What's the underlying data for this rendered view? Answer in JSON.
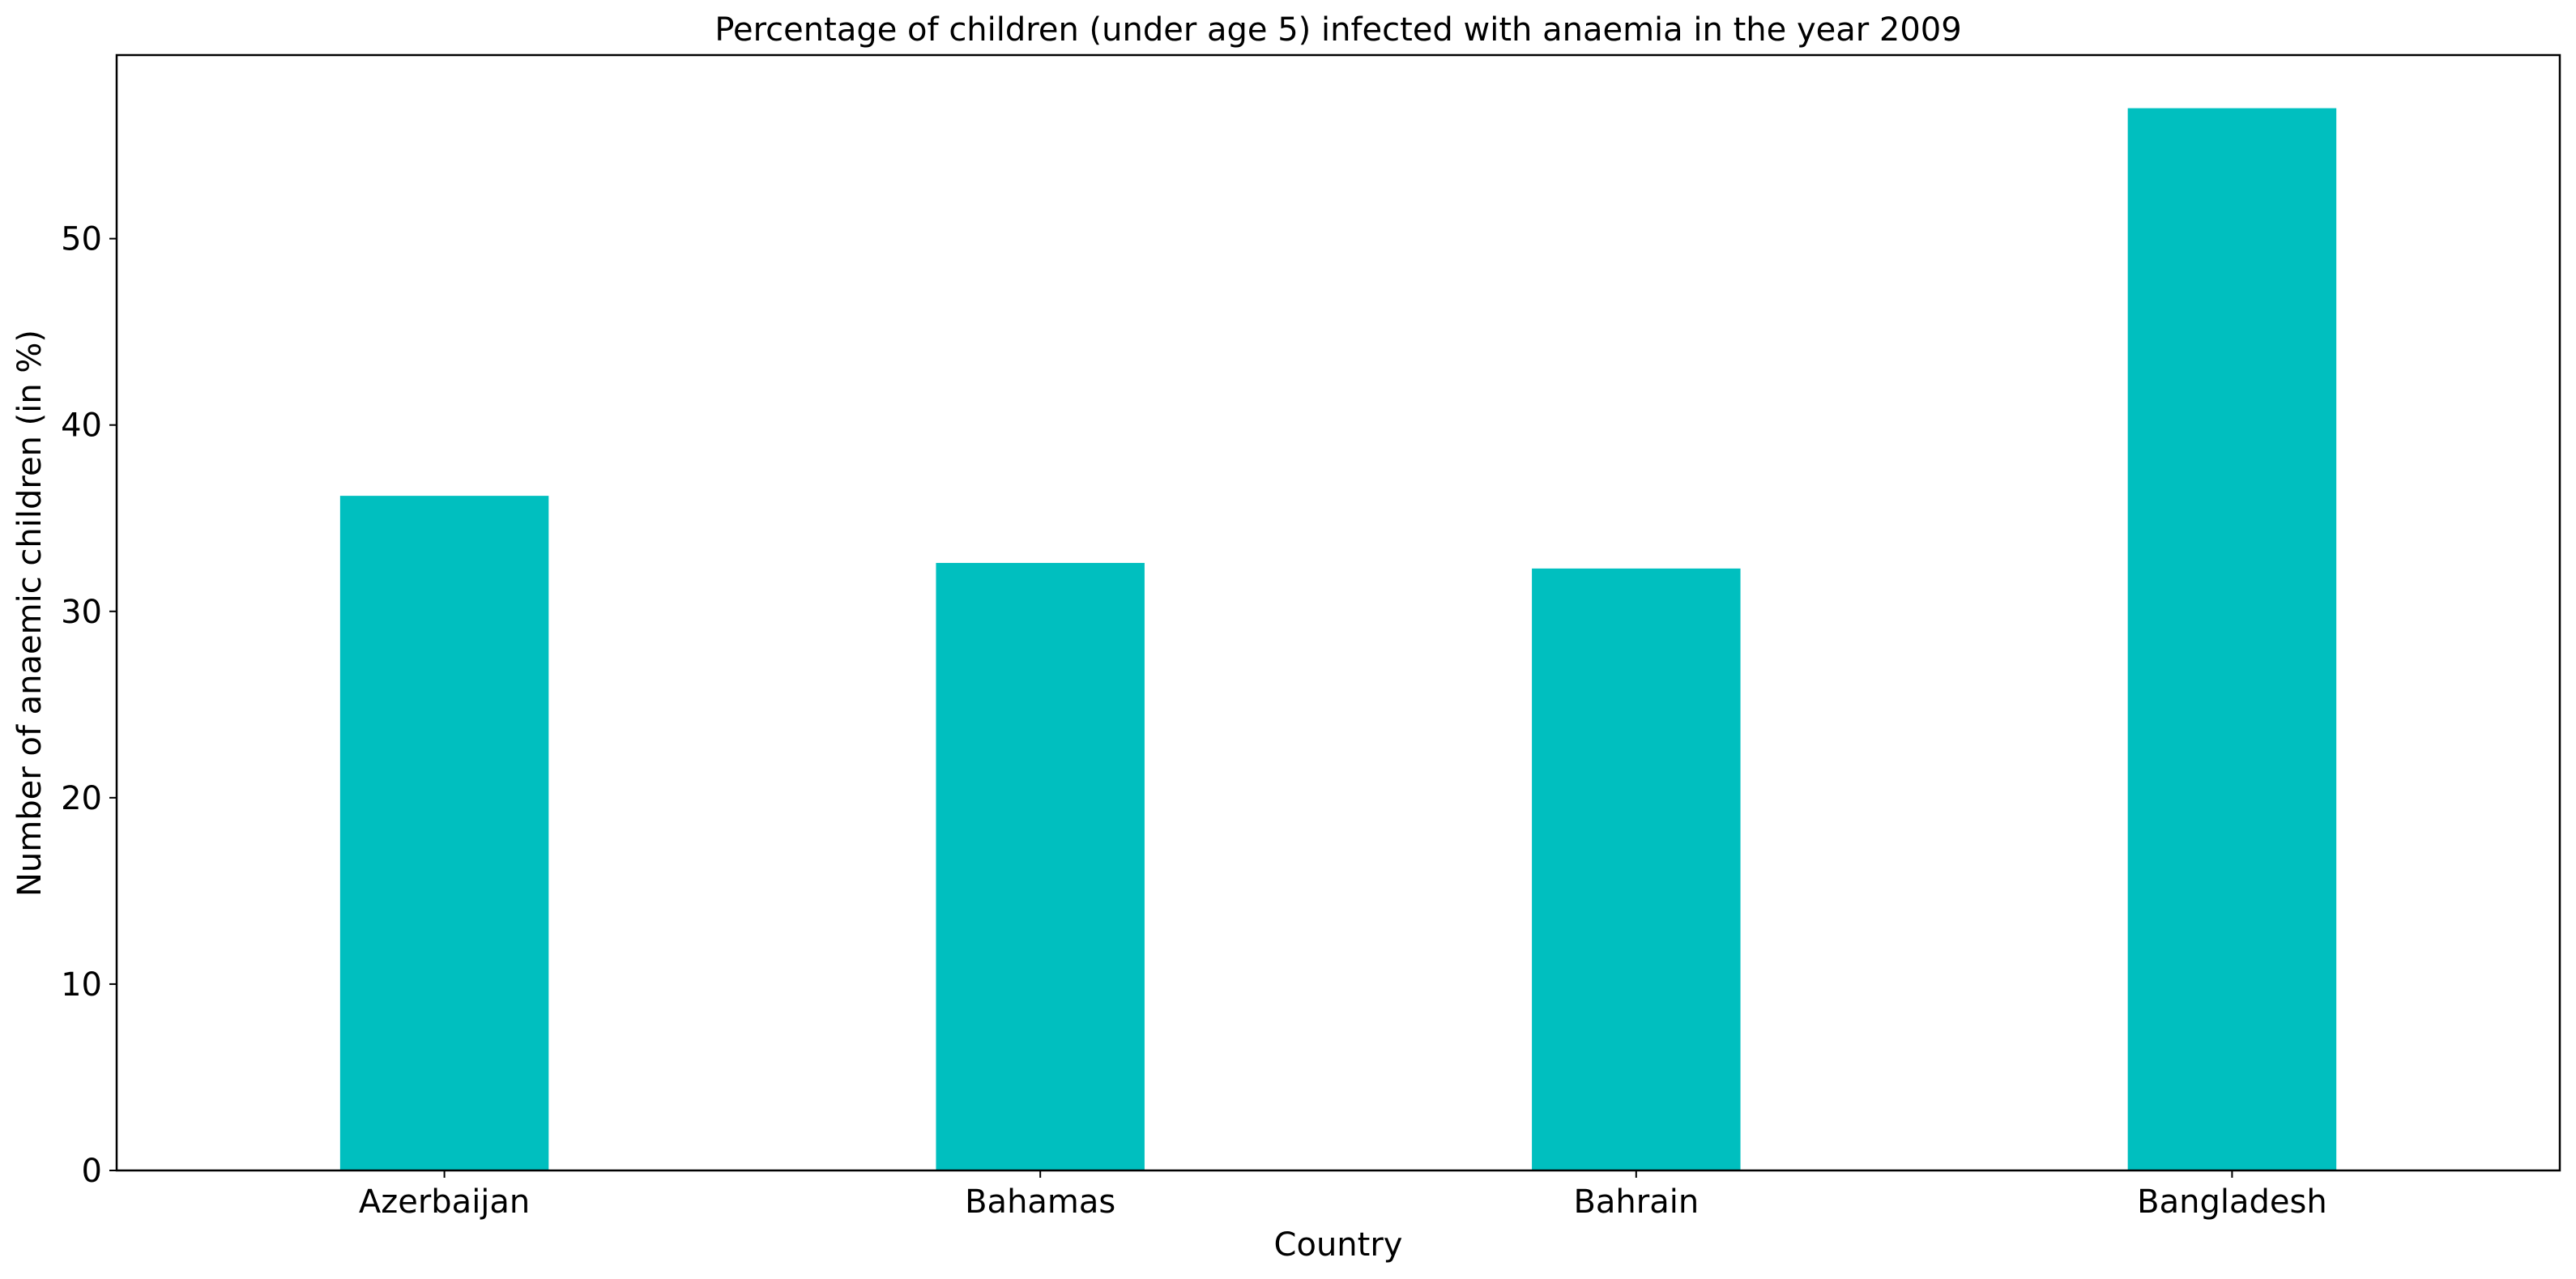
{
  "chart_data": {
    "type": "bar",
    "title": "Percentage of children (under age 5) infected with anaemia in the year 2009",
    "xlabel": "Country",
    "ylabel": "Number of anaemic children (in %)",
    "categories": [
      "Azerbaijan",
      "Bahamas",
      "Bahrain",
      "Bangladesh"
    ],
    "values": [
      36.2,
      32.6,
      32.3,
      57.0
    ],
    "ylim": [
      0,
      59.85
    ],
    "yticks": [
      0,
      10,
      20,
      30,
      40,
      50
    ],
    "bar_color": "#00bfbf",
    "grid": false,
    "legend": "none"
  }
}
